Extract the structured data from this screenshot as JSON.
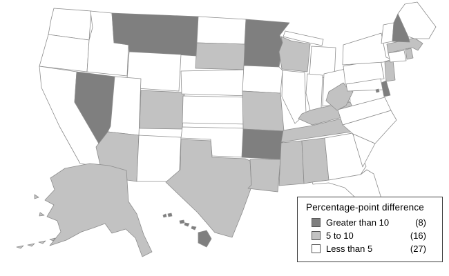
{
  "legend": {
    "title": "Percentage-point difference",
    "items": [
      {
        "label": "Greater than 10",
        "count": "(8)",
        "color": "#7f7f7f"
      },
      {
        "label": "5 to 10",
        "count": "(16)",
        "color": "#c2c2c2"
      },
      {
        "label": "Less than 5",
        "count": "(27)",
        "color": "#ffffff"
      }
    ]
  },
  "map": {
    "type": "choropleth-us-states",
    "border_color": "#8c8c8c",
    "classes": [
      {
        "label": "Greater than 10",
        "color": "#7f7f7f",
        "states": [
          "MT",
          "NV",
          "MN",
          "AR",
          "NH",
          "DE",
          "DC",
          "HI"
        ]
      },
      {
        "label": "5 to 10",
        "color": "#c2c2c2",
        "states": [
          "AK",
          "AZ",
          "CO",
          "SD",
          "TX",
          "WI",
          "MO",
          "LA",
          "MS",
          "AL",
          "TN",
          "KY",
          "WV",
          "NJ",
          "MA",
          "RI"
        ]
      },
      {
        "label": "Less than 5",
        "color": "#ffffff",
        "states": [
          "WA",
          "OR",
          "CA",
          "ID",
          "UT",
          "WY",
          "NM",
          "ND",
          "NE",
          "KS",
          "OK",
          "IA",
          "IL",
          "IN",
          "OH",
          "MI",
          "PA",
          "NY",
          "VT",
          "ME",
          "CT",
          "MD",
          "VA",
          "NC",
          "SC",
          "GA",
          "FL"
        ]
      }
    ]
  }
}
